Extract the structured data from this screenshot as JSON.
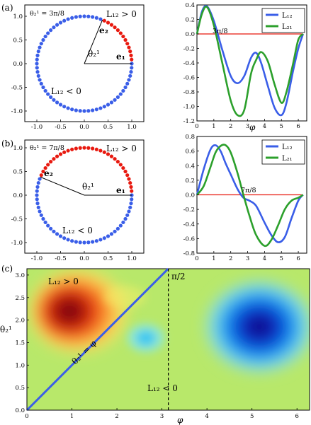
{
  "panels": {
    "a": "(a)",
    "b": "(b)",
    "c": "(c)"
  },
  "circles": [
    {
      "theta_label": "θ₂¹ = 3π/8",
      "pos_label": "L₁₂ > 0",
      "neg_label": "L₁₂ < 0",
      "e1_label": "e₁",
      "e2_label": "e₂",
      "angle_label": "θ₂¹",
      "theta": 1.1781,
      "xticks": [
        "-1.0",
        "-0.5",
        "0.0",
        "0.5",
        "1.0"
      ],
      "yticks": [
        "1.0",
        "0.5",
        "0.0",
        "-0.5",
        "-1.0"
      ]
    },
    {
      "theta_label": "θ₂¹ = 7π/8",
      "pos_label": "L₁₂ > 0",
      "neg_label": "L₁₂ < 0",
      "e1_label": "e₁",
      "e2_label": "e₂",
      "angle_label": "θ₂¹",
      "theta": 2.7489,
      "xticks": [
        "-1.0",
        "-0.5",
        "0.0",
        "0.5",
        "1.0"
      ],
      "yticks": [
        "1.0",
        "0.5",
        "0.0",
        "-0.5",
        "-1.0"
      ]
    }
  ],
  "colors": {
    "blue": "#3a5ee8",
    "red": "#e8190f",
    "green": "#2ca02c",
    "ink": "#000000"
  },
  "chart_data": [
    {
      "type": "line",
      "panel": "(a)",
      "annotation": "3π/8",
      "xlabel": "φ",
      "xlim": [
        0,
        6.5
      ],
      "ylim": [
        -1.2,
        0.4
      ],
      "xticks": [
        "0",
        "1",
        "2",
        "3",
        "4",
        "5",
        "6"
      ],
      "yticks": [
        "0.4",
        "0.2",
        "0.0",
        "-0.2",
        "-0.4",
        "-0.6",
        "-0.8",
        "-1.0",
        "-1.2"
      ],
      "legend_position": "top-right",
      "x": [
        0,
        0.3,
        0.6,
        1.0,
        1.5,
        2.0,
        2.4,
        2.8,
        3.2,
        3.5,
        3.8,
        4.2,
        4.6,
        5.0,
        5.3,
        5.7,
        6.0,
        6.28
      ],
      "series": [
        {
          "name": "L₁₂",
          "values": [
            0,
            0.31,
            0.38,
            0.18,
            -0.22,
            -0.58,
            -0.68,
            -0.58,
            -0.33,
            -0.26,
            -0.4,
            -0.72,
            -1.02,
            -1.12,
            -0.95,
            -0.5,
            -0.2,
            0.0
          ]
        },
        {
          "name": "L₂₁",
          "values": [
            0,
            0.28,
            0.37,
            0.12,
            -0.4,
            -0.92,
            -1.12,
            -1.05,
            -0.55,
            -0.36,
            -0.25,
            -0.38,
            -0.7,
            -0.95,
            -0.8,
            -0.4,
            -0.08,
            0.0
          ]
        },
        {
          "name": "",
          "values": [
            0,
            0,
            0,
            0,
            0,
            0,
            0,
            0,
            0,
            0,
            0,
            0,
            0,
            0,
            0,
            0,
            0,
            0
          ]
        }
      ]
    },
    {
      "type": "line",
      "panel": "(b)",
      "annotation": "7π/8",
      "xlabel": "",
      "xlim": [
        0,
        6.5
      ],
      "ylim": [
        -0.8,
        0.8
      ],
      "xticks": [
        "0",
        "1",
        "2",
        "3",
        "4",
        "5",
        "6"
      ],
      "yticks": [
        "0.8",
        "0.6",
        "0.4",
        "0.2",
        "0.0",
        "-0.2",
        "-0.4",
        "-0.6",
        "-0.8"
      ],
      "legend_position": "top-right",
      "x": [
        0,
        0.4,
        0.8,
        1.1,
        1.4,
        1.7,
        2.0,
        2.4,
        2.75,
        3.1,
        3.5,
        4.0,
        4.4,
        4.8,
        5.2,
        5.6,
        6.0,
        6.28
      ],
      "series": [
        {
          "name": "L₁₂",
          "values": [
            0,
            0.35,
            0.62,
            0.68,
            0.6,
            0.43,
            0.28,
            0.08,
            -0.04,
            -0.08,
            -0.15,
            -0.38,
            -0.55,
            -0.65,
            -0.58,
            -0.32,
            -0.08,
            0.0
          ]
        },
        {
          "name": "L₂₁",
          "values": [
            0,
            0.12,
            0.38,
            0.58,
            0.67,
            0.68,
            0.58,
            0.3,
            0.0,
            -0.28,
            -0.55,
            -0.7,
            -0.62,
            -0.42,
            -0.2,
            -0.08,
            -0.04,
            0.0
          ]
        },
        {
          "name": "",
          "values": [
            0,
            0,
            0,
            0,
            0,
            0,
            0,
            0,
            0,
            0,
            0,
            0,
            0,
            0,
            0,
            0,
            0,
            0
          ]
        }
      ]
    },
    {
      "type": "heatmap",
      "panel": "(c)",
      "xlabel": "φ",
      "ylabel": "θ₂¹",
      "xlim": [
        0,
        6.28
      ],
      "ylim": [
        0,
        3.14
      ],
      "xticks": [
        "0",
        "1",
        "2",
        "3",
        "4",
        "5",
        "6"
      ],
      "yticks": [
        "3.0",
        "2.5",
        "2.0",
        "1.5",
        "1.0",
        "0.5",
        "0.0"
      ],
      "features": [
        {
          "kind": "max",
          "x": 0.95,
          "y": 2.15
        },
        {
          "kind": "min",
          "x": 5.15,
          "y": 1.85
        },
        {
          "kind": "min",
          "x": 2.55,
          "y": 1.45
        }
      ],
      "annotations": [
        {
          "text": "L₁₂ > 0",
          "x": 0.55,
          "y": 2.75
        },
        {
          "text": "π/2",
          "x": 3.2,
          "y": 2.95
        },
        {
          "text": "θ₂¹ = φ",
          "x": 1.0,
          "y": 1.05
        },
        {
          "text": "L₁₂ < 0",
          "x": 3.1,
          "y": 0.5
        }
      ],
      "diagonal_line": "θ₂¹ = φ",
      "vertical_dashed_line_x": 3.1416
    }
  ]
}
